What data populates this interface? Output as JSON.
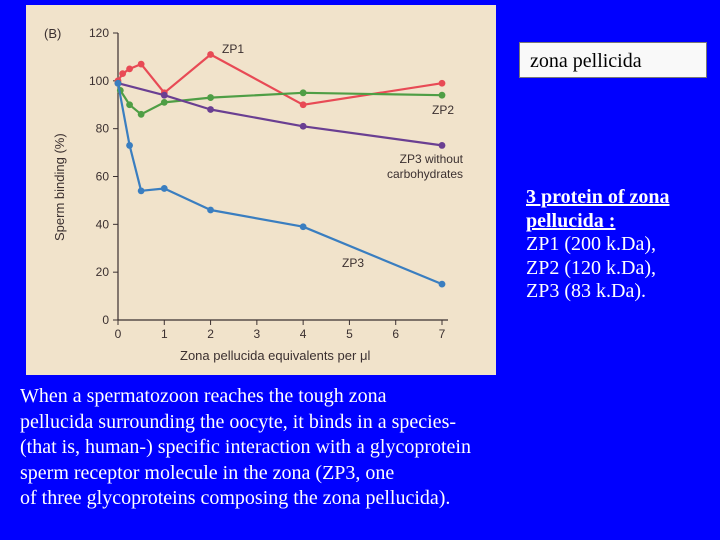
{
  "colors": {
    "background": "#0000ff",
    "figure_bg": "#f1e3cb",
    "zp1": "#e84a55",
    "zp2": "#4f9e45",
    "zp3_no_carb": "#6a3f92",
    "zp3": "#3a7ec0"
  },
  "title_box": {
    "text": "zona pellicida"
  },
  "protein_box": {
    "heading": "3 protein of zona pellucida :",
    "items": [
      "ZP1 (200 k.Da),",
      "ZP2 (120 k.Da),",
      "ZP3 (83 k.Da)."
    ]
  },
  "caption": {
    "lines": [
      "When a spermatozoon reaches the tough zona",
      "pellucida surrounding the oocyte, it binds in a species-",
      "(that is, human-) specific interaction with a glycoprotein",
      "sperm receptor molecule in the zona (ZP3, one",
      "of three glycoproteins composing the zona pellucida)."
    ]
  },
  "chart_data": {
    "type": "line",
    "panel_label": "(B)",
    "title": "",
    "xlabel": "Zona pellucida equivalents per μl",
    "ylabel": "Sperm binding (%)",
    "xlim": [
      0,
      7
    ],
    "ylim": [
      0,
      120
    ],
    "x_ticks": [
      0,
      1,
      2,
      3,
      4,
      5,
      6,
      7
    ],
    "y_ticks": [
      0,
      20,
      40,
      60,
      80,
      100,
      120
    ],
    "grid": false,
    "series": [
      {
        "name": "ZP1",
        "label_lines": [
          "ZP1"
        ],
        "color_key": "zp1",
        "x": [
          0,
          0.1,
          0.25,
          0.5,
          1,
          2,
          4,
          7
        ],
        "y": [
          100,
          103,
          105,
          107,
          95,
          111,
          90,
          99
        ]
      },
      {
        "name": "ZP2",
        "label_lines": [
          "ZP2"
        ],
        "color_key": "zp2",
        "x": [
          0,
          0.05,
          0.25,
          0.5,
          1,
          2,
          4,
          7
        ],
        "y": [
          99,
          96,
          90,
          86,
          91,
          93,
          95,
          94
        ]
      },
      {
        "name": "ZP3 without carbohydrates",
        "label_lines": [
          "ZP3 without",
          "carbohydrates"
        ],
        "color_key": "zp3_no_carb",
        "x": [
          0,
          1,
          2,
          4,
          7
        ],
        "y": [
          99,
          94,
          88,
          81,
          73
        ]
      },
      {
        "name": "ZP3",
        "label_lines": [
          "ZP3"
        ],
        "color_key": "zp3",
        "x": [
          0,
          0.25,
          0.5,
          1,
          2,
          4,
          7
        ],
        "y": [
          99,
          73,
          54,
          55,
          46,
          39,
          15
        ]
      }
    ]
  }
}
